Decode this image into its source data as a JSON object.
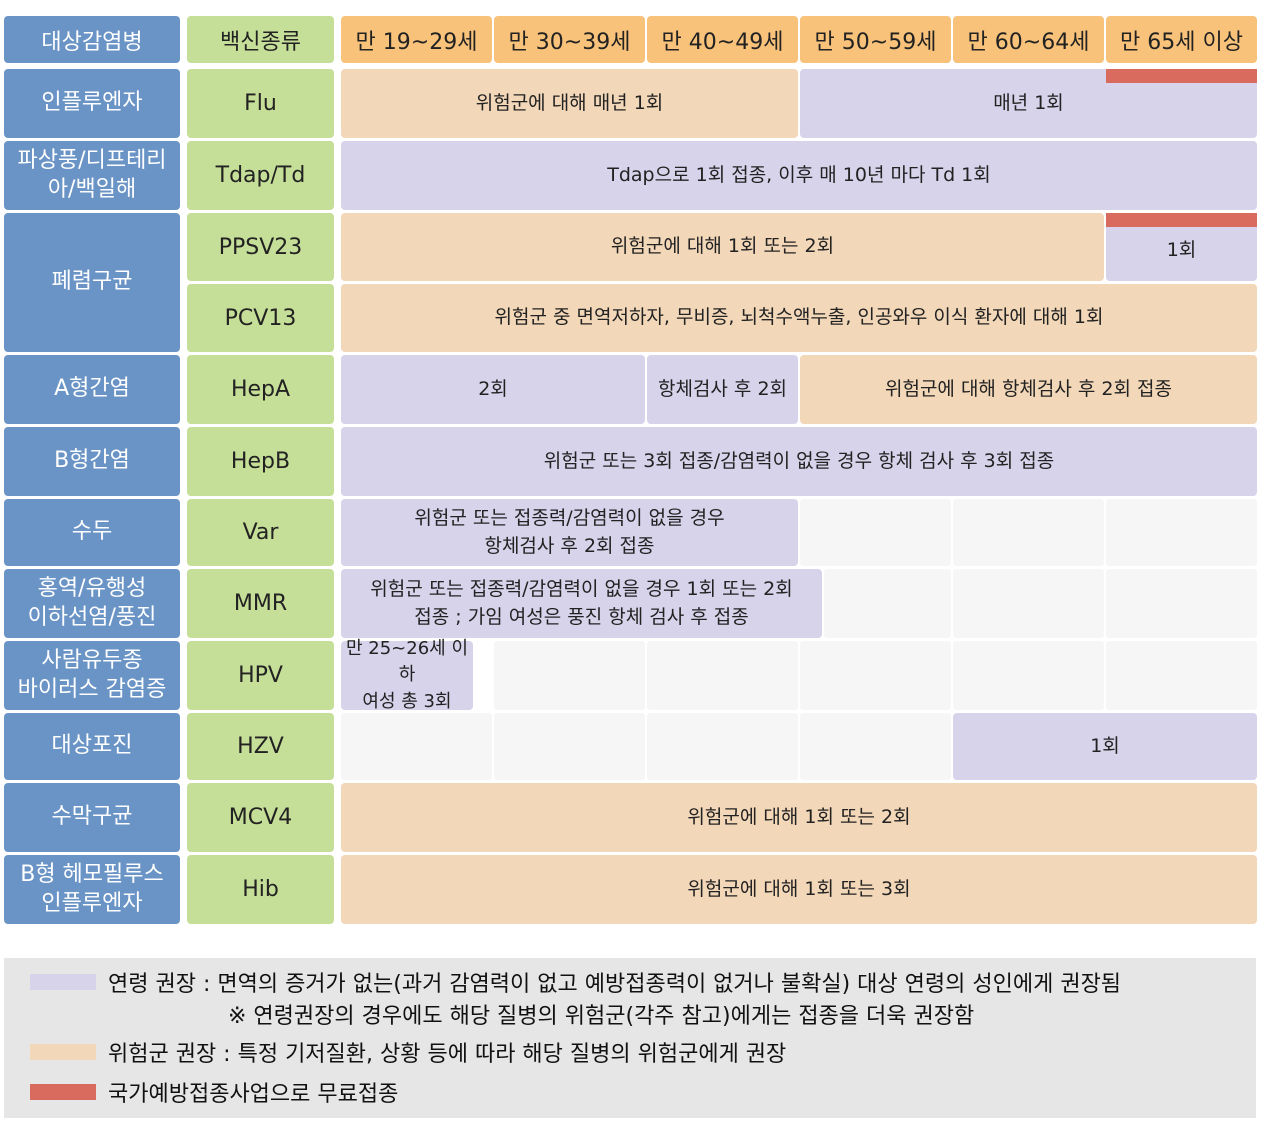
{
  "header": {
    "disease_label": "대상감염병",
    "vaccine_label": "백신종류",
    "ages": [
      "만 19~29세",
      "만 30~39세",
      "만 40~49세",
      "만 50~59세",
      "만 60~64세",
      "만 65세 이상"
    ]
  },
  "rows": [
    {
      "disease": "인플루엔자",
      "vaccine": "Flu"
    },
    {
      "disease": "파상풍/디프테리\n아/백일해",
      "vaccine": "Tdap/Td"
    },
    {
      "disease": "폐렴구균",
      "vaccine": "PPSV23"
    },
    {
      "disease": "",
      "vaccine": "PCV13"
    },
    {
      "disease": "A형간염",
      "vaccine": "HepA"
    },
    {
      "disease": "B형간염",
      "vaccine": "HepB"
    },
    {
      "disease": "수두",
      "vaccine": "Var"
    },
    {
      "disease": "홍역/유행성\n이하선염/풍진",
      "vaccine": "MMR"
    },
    {
      "disease": "사람유두종\n바이러스 감염증",
      "vaccine": "HPV"
    },
    {
      "disease": "대상포진",
      "vaccine": "HZV"
    },
    {
      "disease": "수막구균",
      "vaccine": "MCV4"
    },
    {
      "disease": "B형 헤모필루스\n인플루엔자",
      "vaccine": "Hib"
    }
  ],
  "bars": {
    "flu_risk": "위험군에 대해 매년 1회",
    "flu_age": "매년 1회",
    "tdap": "Tdap으로 1회 접종, 이후 매 10년 마다 Td 1회",
    "ppsv23_risk": "위험군에 대해 1회 또는 2회",
    "ppsv23_age": "1회",
    "pcv13": "위험군 중 면역저하자, 무비증, 뇌척수액누출, 인공와우 이식 환자에 대해 1회",
    "hepa_age": "2회",
    "hepa_age2": "항체검사 후 2회",
    "hepa_risk": "위험군에 대해 항체검사 후 2회 접종",
    "hepb": "위험군 또는 3회 접종/감염력이 없을 경우 항체 검사 후 3회 접종",
    "var": "위험군 또는 접종력/감염력이 없을 경우\n항체검사 후 2회 접종",
    "mmr": "위험군 또는 접종력/감염력이 없을 경우 1회 또는 2회\n접종 ; 가임 여성은 풍진 항체 검사 후 접종",
    "hpv": "만 25~26세 이하\n여성 총 3회",
    "hzv": "1회",
    "mcv4": "위험군에 대해 1회 또는 2회",
    "hib": "위험군에 대해 1회 또는 3회"
  },
  "legend": {
    "age_line1": "연령 권장 : 면역의 증거가 없는(과거 감염력이 없고 예방접종력이 없거나 불확실) 대상 연령의 성인에게 권장됨",
    "age_line2": "※ 연령권장의 경우에도 해당 질병의 위험군(각주 참고)에게는 접종을 더욱 권장함",
    "risk": "위험군 권장 : 특정 기저질환, 상황 등에 따라 해당 질병의 위험군에게 권장",
    "free": "국가예방접종사업으로 무료접종"
  },
  "colors": {
    "age_recommended": "#d6d3ea",
    "risk_recommended": "#f2d7b8",
    "free_vaccination": "#d96b5e",
    "disease_header": "#6a94c6",
    "vaccine_header": "#c6df98",
    "age_header": "#f8c27a"
  }
}
